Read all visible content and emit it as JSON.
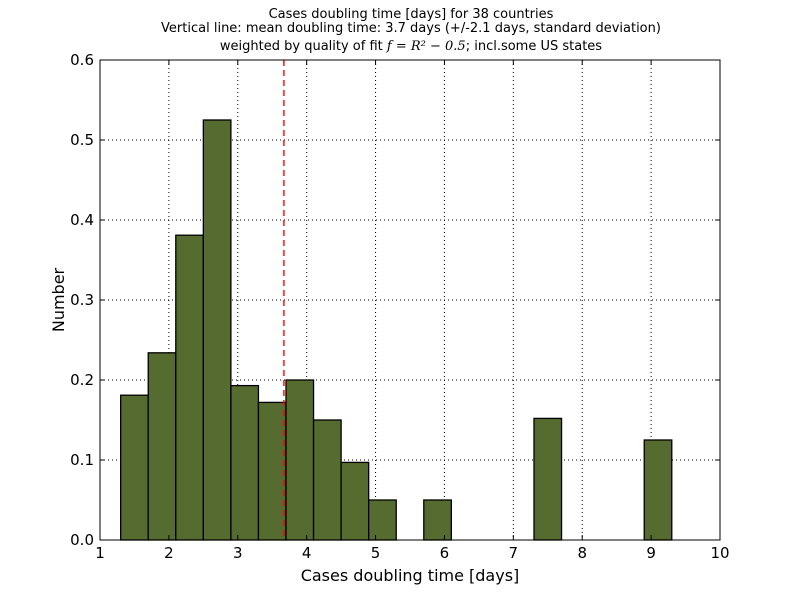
{
  "chart_data": {
    "type": "bar",
    "title_lines": [
      "Cases doubling time [days] for 38 countries",
      "Vertical line: mean doubling time: 3.7 days (+/-2.1 days, standard deviation)"
    ],
    "title_line3": {
      "prefix": "weighted by quality of fit ",
      "math": "f = R² − 0.5",
      "suffix": "; incl.some US states"
    },
    "xlabel": "Cases doubling time [days]",
    "ylabel": "Number",
    "xlim": [
      1,
      10
    ],
    "ylim": [
      0,
      0.6
    ],
    "xticks": [
      1,
      2,
      3,
      4,
      5,
      6,
      7,
      8,
      9,
      10
    ],
    "yticks": [
      0.0,
      0.1,
      0.2,
      0.3,
      0.4,
      0.5,
      0.6
    ],
    "ytick_labels": [
      "0.0",
      "0.1",
      "0.2",
      "0.3",
      "0.4",
      "0.5",
      "0.6"
    ],
    "grid": true,
    "bar_color": "#556b2f",
    "bars": [
      {
        "x0": 1.3,
        "x1": 1.7,
        "value": 0.181
      },
      {
        "x0": 1.7,
        "x1": 2.1,
        "value": 0.234
      },
      {
        "x0": 2.1,
        "x1": 2.5,
        "value": 0.381
      },
      {
        "x0": 2.5,
        "x1": 2.9,
        "value": 0.525
      },
      {
        "x0": 2.9,
        "x1": 3.3,
        "value": 0.193
      },
      {
        "x0": 3.3,
        "x1": 3.7,
        "value": 0.172
      },
      {
        "x0": 3.7,
        "x1": 4.1,
        "value": 0.2
      },
      {
        "x0": 4.1,
        "x1": 4.5,
        "value": 0.15
      },
      {
        "x0": 4.5,
        "x1": 4.9,
        "value": 0.097
      },
      {
        "x0": 4.9,
        "x1": 5.3,
        "value": 0.05
      },
      {
        "x0": 5.3,
        "x1": 5.7,
        "value": 0.0
      },
      {
        "x0": 5.7,
        "x1": 6.1,
        "value": 0.05
      },
      {
        "x0": 6.1,
        "x1": 6.5,
        "value": 0.0
      },
      {
        "x0": 6.5,
        "x1": 6.9,
        "value": 0.0
      },
      {
        "x0": 6.9,
        "x1": 7.3,
        "value": 0.0
      },
      {
        "x0": 7.3,
        "x1": 7.7,
        "value": 0.152
      },
      {
        "x0": 7.7,
        "x1": 8.1,
        "value": 0.0
      },
      {
        "x0": 8.1,
        "x1": 8.5,
        "value": 0.0
      },
      {
        "x0": 8.5,
        "x1": 8.9,
        "value": 0.0
      },
      {
        "x0": 8.9,
        "x1": 9.3,
        "value": 0.125
      }
    ],
    "mean_line": {
      "x": 3.67,
      "color": "#ff0000",
      "style": "dashed"
    }
  }
}
